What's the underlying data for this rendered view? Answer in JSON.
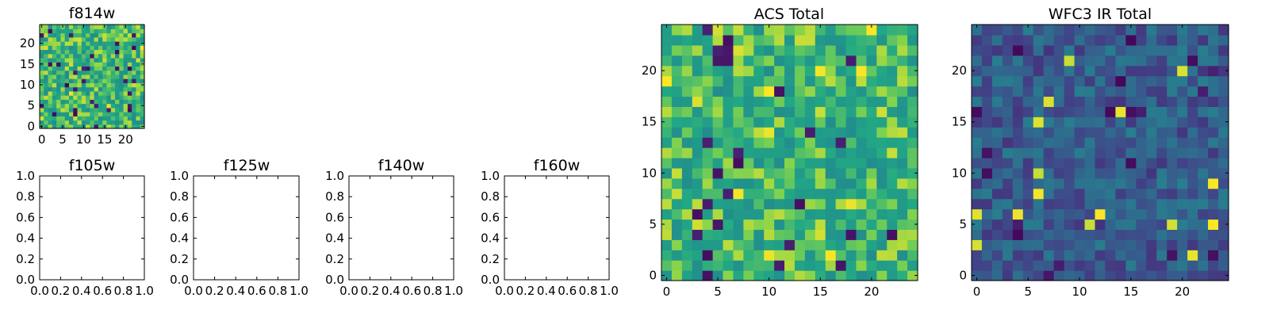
{
  "chart_data": [
    {
      "id": "f814w",
      "type": "heatmap",
      "title": "f814w",
      "shape": [
        25,
        25
      ],
      "seed": 814,
      "x_ticks": [
        "0",
        "5",
        "10",
        "15",
        "20"
      ],
      "y_ticks": [
        "0",
        "5",
        "10",
        "15",
        "20"
      ],
      "xlim": [
        -0.5,
        24.5
      ],
      "ylim": [
        -0.5,
        24.5
      ],
      "colormap": "viridis",
      "typical_level": 0.78
    },
    {
      "id": "f105w",
      "type": "heatmap",
      "title": "f105w",
      "empty": true,
      "x_ticks": [
        "0.0",
        "0.2",
        "0.4",
        "0.6",
        "0.8",
        "1.0"
      ],
      "y_ticks": [
        "0.0",
        "0.2",
        "0.4",
        "0.6",
        "0.8",
        "1.0"
      ],
      "xlim": [
        0,
        1
      ],
      "ylim": [
        0,
        1
      ]
    },
    {
      "id": "f125w",
      "type": "heatmap",
      "title": "f125w",
      "empty": true,
      "x_ticks": [
        "0.0",
        "0.2",
        "0.4",
        "0.6",
        "0.8",
        "1.0"
      ],
      "y_ticks": [
        "0.0",
        "0.2",
        "0.4",
        "0.6",
        "0.8",
        "1.0"
      ],
      "xlim": [
        0,
        1
      ],
      "ylim": [
        0,
        1
      ]
    },
    {
      "id": "f140w",
      "type": "heatmap",
      "title": "f140w",
      "empty": true,
      "x_ticks": [
        "0.0",
        "0.2",
        "0.4",
        "0.6",
        "0.8",
        "1.0"
      ],
      "y_ticks": [
        "0.0",
        "0.2",
        "0.4",
        "0.6",
        "0.8",
        "1.0"
      ],
      "xlim": [
        0,
        1
      ],
      "ylim": [
        0,
        1
      ]
    },
    {
      "id": "f160w",
      "type": "heatmap",
      "title": "f160w",
      "empty": true,
      "x_ticks": [
        "0.0",
        "0.2",
        "0.4",
        "0.6",
        "0.8",
        "1.0"
      ],
      "y_ticks": [
        "0.0",
        "0.2",
        "0.4",
        "0.6",
        "0.8",
        "1.0"
      ],
      "xlim": [
        0,
        1
      ],
      "ylim": [
        0,
        1
      ]
    },
    {
      "id": "acs_total",
      "type": "heatmap",
      "title": "ACS Total",
      "shape": [
        25,
        25
      ],
      "seed": 2201,
      "x_ticks": [
        "0",
        "5",
        "10",
        "15",
        "20"
      ],
      "y_ticks": [
        "0",
        "5",
        "10",
        "15",
        "20"
      ],
      "xlim": [
        -0.5,
        24.5
      ],
      "ylim": [
        -0.5,
        24.5
      ],
      "colormap": "viridis",
      "typical_level": 0.78
    },
    {
      "id": "wfc3_ir_total",
      "type": "heatmap",
      "title": "WFC3 IR Total",
      "shape": [
        25,
        25
      ],
      "seed": 3303,
      "x_ticks": [
        "0",
        "5",
        "10",
        "15",
        "20"
      ],
      "y_ticks": [
        "0",
        "5",
        "10",
        "15",
        "20"
      ],
      "xlim": [
        -0.5,
        24.5
      ],
      "ylim": [
        -0.5,
        24.5
      ],
      "colormap": "viridis",
      "typical_level": 0.36
    }
  ]
}
